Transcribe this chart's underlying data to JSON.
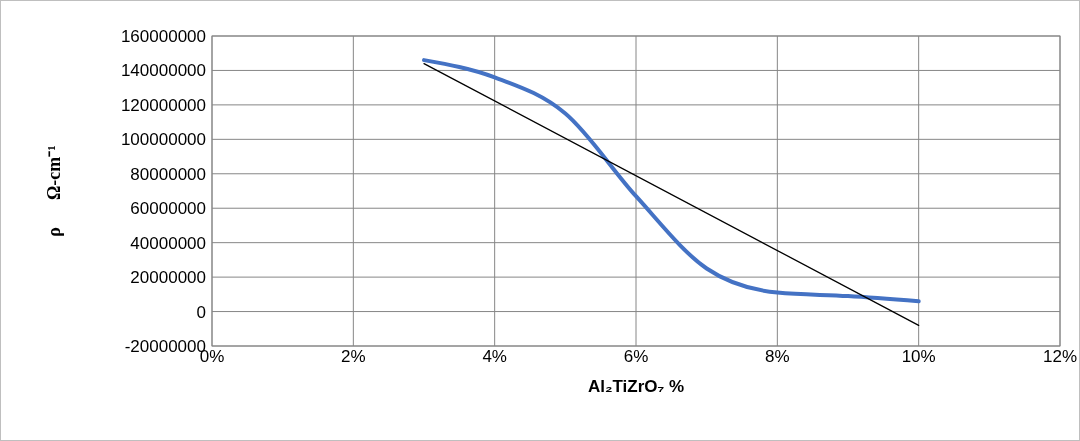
{
  "chart_data": {
    "type": "line",
    "xlabel": "Al₂TiZrO₇ %",
    "ylabel": "ρ      Ω-cm⁻¹",
    "xlim": [
      0,
      0.12
    ],
    "xticks": [
      {
        "value": 0,
        "label": "0%"
      },
      {
        "value": 0.02,
        "label": "2%"
      },
      {
        "value": 0.04,
        "label": "4%"
      },
      {
        "value": 0.06,
        "label": "6%"
      },
      {
        "value": 0.08,
        "label": "8%"
      },
      {
        "value": 0.1,
        "label": "10%"
      },
      {
        "value": 0.12,
        "label": "12%"
      }
    ],
    "ylim": [
      -20000000,
      160000000
    ],
    "yticks": [
      -20000000,
      0,
      20000000,
      40000000,
      60000000,
      80000000,
      100000000,
      120000000,
      140000000,
      160000000
    ],
    "grid": true,
    "series": [
      {
        "color": "#4472c4",
        "x": [
          0.03,
          0.04,
          0.05,
          0.06,
          0.07,
          0.08,
          0.09,
          0.1
        ],
        "values": [
          146000000,
          136000000,
          115000000,
          67000000,
          25000000,
          11000000,
          9000000,
          6000000
        ]
      },
      {
        "color": "#000000",
        "x": [
          0.03,
          0.1
        ],
        "values": [
          144000000,
          -8000000
        ]
      }
    ]
  }
}
